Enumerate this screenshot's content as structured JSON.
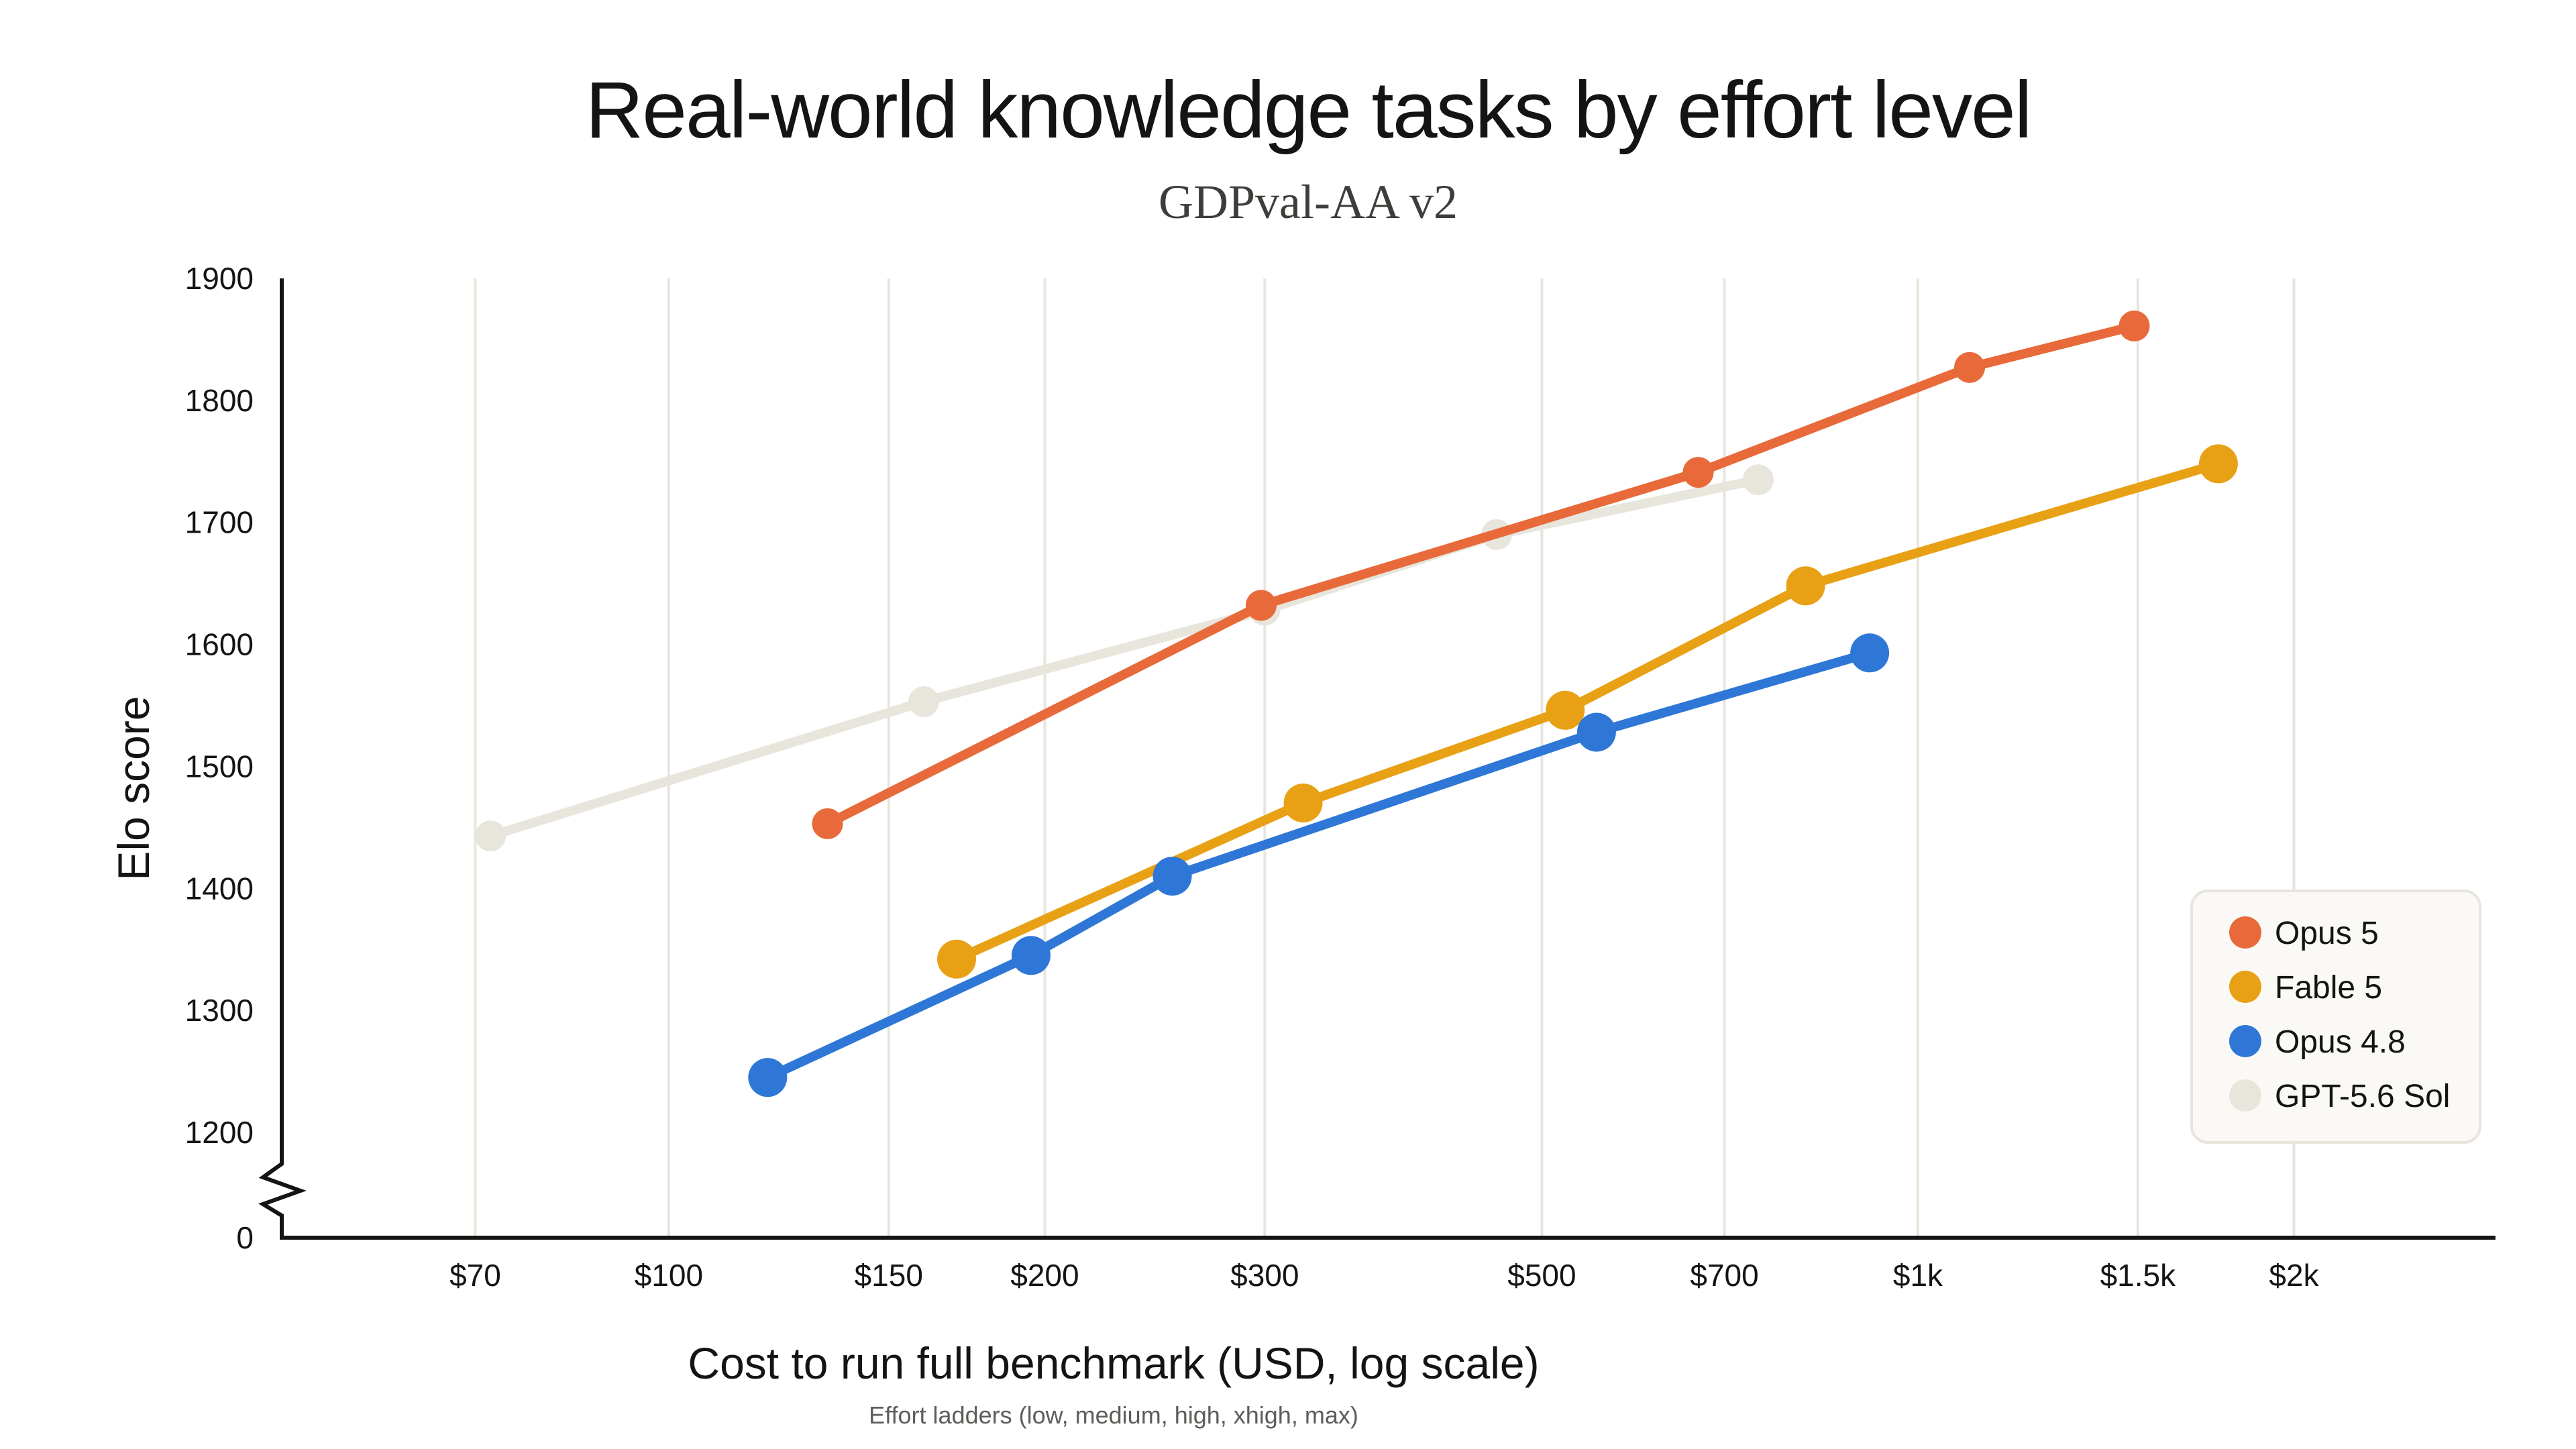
{
  "chart_data": {
    "type": "line",
    "title": "Real-world knowledge tasks by effort level",
    "subtitle": "GDPval-AA v2",
    "xlabel": "Cost to run full benchmark (USD, log scale)",
    "ylabel": "Elo score",
    "footnote": "Effort ladders (low, medium, high, xhigh, max)",
    "x_scale": "log",
    "xlim": [
      49,
      2900
    ],
    "ylim": [
      1200,
      1900
    ],
    "y_axis_break_label": "0",
    "x_ticks": [
      {
        "value": 70,
        "label": "$70"
      },
      {
        "value": 100,
        "label": "$100"
      },
      {
        "value": 150,
        "label": "$150"
      },
      {
        "value": 200,
        "label": "$200"
      },
      {
        "value": 300,
        "label": "$300"
      },
      {
        "value": 500,
        "label": "$500"
      },
      {
        "value": 700,
        "label": "$700"
      },
      {
        "value": 1000,
        "label": "$1k"
      },
      {
        "value": 1500,
        "label": "$1.5k"
      },
      {
        "value": 2000,
        "label": "$2k"
      }
    ],
    "y_ticks": [
      {
        "value": 1900,
        "label": "1900"
      },
      {
        "value": 1800,
        "label": "1800"
      },
      {
        "value": 1700,
        "label": "1700"
      },
      {
        "value": 1600,
        "label": "1600"
      },
      {
        "value": 1500,
        "label": "1500"
      },
      {
        "value": 1400,
        "label": "1400"
      },
      {
        "value": 1300,
        "label": "1300"
      },
      {
        "value": 1200,
        "label": "1200"
      }
    ],
    "grid": {
      "vertical": true,
      "horizontal": false
    },
    "legend_position": "bottom-right",
    "series": [
      {
        "name": "GPT-5.6 Sol",
        "color": "#e8e6dc",
        "marker": "small",
        "points": [
          [
            72,
            1443
          ],
          [
            160,
            1553
          ],
          [
            300,
            1628
          ],
          [
            460,
            1690
          ],
          [
            745,
            1735
          ]
        ]
      },
      {
        "name": "Opus 5",
        "color": "#e8693a",
        "marker": "small",
        "points": [
          [
            134,
            1453
          ],
          [
            298,
            1632
          ],
          [
            667,
            1741
          ],
          [
            1100,
            1827
          ],
          [
            1490,
            1861
          ]
        ]
      },
      {
        "name": "Fable 5",
        "color": "#e8a115",
        "marker": "large",
        "points": [
          [
            170,
            1342
          ],
          [
            322,
            1470
          ],
          [
            522,
            1546
          ],
          [
            813,
            1648
          ],
          [
            1740,
            1748
          ]
        ]
      },
      {
        "name": "Opus 4.8",
        "color": "#2f77d6",
        "marker": "large",
        "points": [
          [
            120,
            1245
          ],
          [
            195,
            1345
          ],
          [
            253,
            1410
          ],
          [
            553,
            1528
          ],
          [
            915,
            1593
          ]
        ]
      }
    ],
    "legend": [
      {
        "name": "Opus 5",
        "color": "#e8693a"
      },
      {
        "name": "Fable 5",
        "color": "#e8a115"
      },
      {
        "name": "Opus 4.8",
        "color": "#2f77d6"
      },
      {
        "name": "GPT-5.6 Sol",
        "color": "#e8e6dc"
      }
    ],
    "colors": {
      "axis": "#141413",
      "grid": "#e8e6dc",
      "legend_bg": "#faf9f5",
      "legend_border": "#e8e6dc"
    }
  }
}
